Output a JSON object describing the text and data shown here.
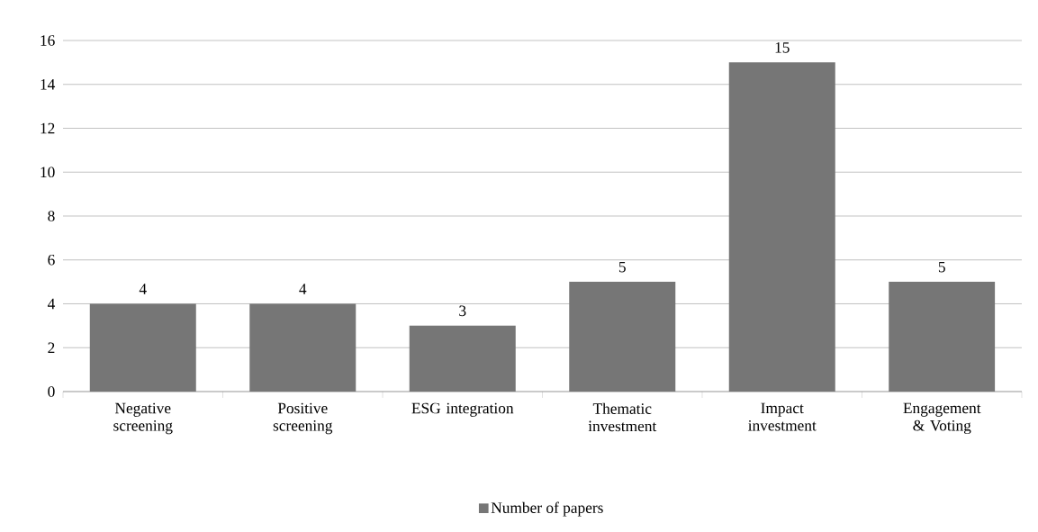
{
  "chart_data": {
    "type": "bar",
    "categories": [
      "Negative screening",
      "Positive screening",
      "ESG integration",
      "Thematic investment",
      "Impact investment",
      "Engagement & Voting"
    ],
    "series": [
      {
        "name": "Number of papers",
        "color": "#767676",
        "values": [
          4,
          4,
          3,
          5,
          15,
          5
        ]
      }
    ],
    "ylim": [
      0,
      16
    ],
    "yticks": [
      0,
      2,
      4,
      6,
      8,
      10,
      12,
      14,
      16
    ],
    "grid": "y",
    "legend": "bottom",
    "data_labels": true
  }
}
